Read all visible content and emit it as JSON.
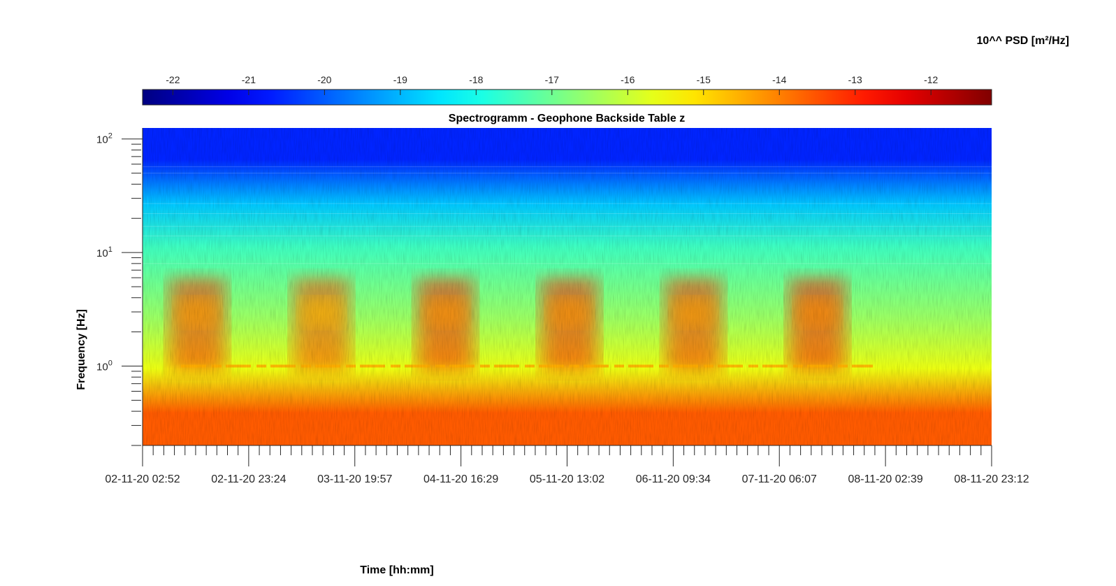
{
  "chart_data": {
    "type": "heatmap",
    "title": "Spectrogramm - Geophone Backside Table z",
    "xlabel": "Time [hh:mm]",
    "ylabel": "Frequency [Hz]",
    "colorbar": {
      "label": "10^^ PSD [m²/Hz]",
      "ticks": [
        "-22",
        "-21",
        "-20",
        "-19",
        "-18",
        "-17",
        "-16",
        "-15",
        "-14",
        "-13",
        "-12"
      ],
      "range": [
        -22.4,
        -11.2
      ],
      "colormap": "jet"
    },
    "x_ticks": [
      "02-11-20 02:52",
      "02-11-20 23:24",
      "03-11-20 19:57",
      "04-11-20 16:29",
      "05-11-20 13:02",
      "06-11-20 09:34",
      "07-11-20 06:07",
      "08-11-20 02:39",
      "08-11-20 23:12"
    ],
    "x_range": [
      "02-11-20 02:52",
      "08-11-20 23:12"
    ],
    "y_scale": "log",
    "y_range": [
      0.2,
      125
    ],
    "y_ticks": [
      {
        "exp": "0",
        "base": "10",
        "value": 1
      },
      {
        "exp": "1",
        "base": "10",
        "value": 10
      },
      {
        "exp": "2",
        "base": "10",
        "value": 100
      }
    ],
    "bands_log10_psd": [
      {
        "freq_range": [
          35,
          125
        ],
        "level": -20.6
      },
      {
        "freq_range": [
          20,
          35
        ],
        "level": -18.8
      },
      {
        "freq_range": [
          6,
          20
        ],
        "level": -17.5
      },
      {
        "freq_range": [
          1.2,
          6
        ],
        "level": -16.5
      },
      {
        "freq_range": [
          0.75,
          1.2
        ],
        "level": -15.6
      },
      {
        "freq_range": [
          0.2,
          0.75
        ],
        "level": -13.6
      }
    ],
    "day_activity_3hz_log10_psd": [
      {
        "time_range": [
          "02-11-20 08:00",
          "02-11-20 19:00"
        ],
        "level": -14.3
      },
      {
        "time_range": [
          "03-11-20 08:00",
          "03-11-20 19:00"
        ],
        "level": -14.6
      },
      {
        "time_range": [
          "04-11-20 08:00",
          "04-11-20 19:00"
        ],
        "level": -14.2
      },
      {
        "time_range": [
          "05-11-20 08:00",
          "05-11-20 19:00"
        ],
        "level": -14.2
      },
      {
        "time_range": [
          "06-11-20 08:00",
          "06-11-20 19:00"
        ],
        "level": -14.3
      },
      {
        "time_range": [
          "07-11-20 08:00",
          "07-11-20 19:00"
        ],
        "level": -14.1
      }
    ],
    "line_1hz_log10_psd": -14.5,
    "grid": false
  }
}
